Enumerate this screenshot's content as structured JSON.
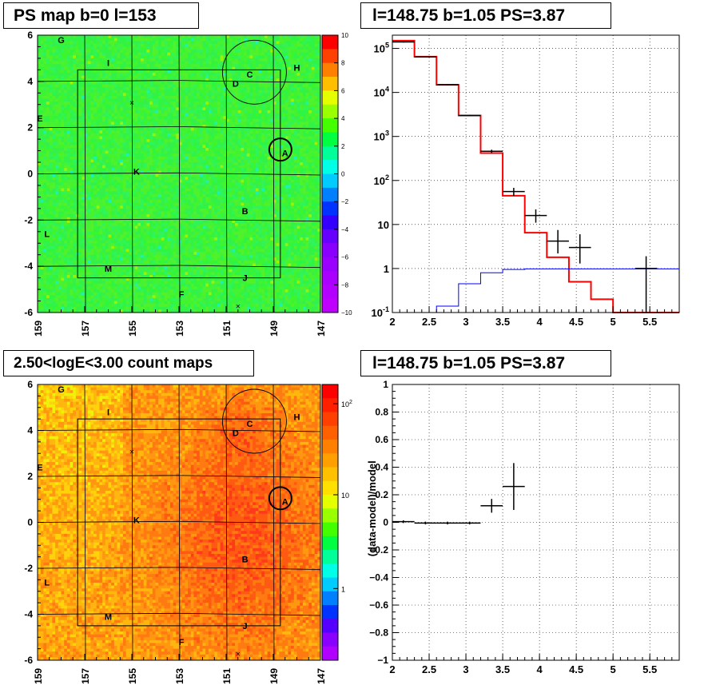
{
  "panels": {
    "tl_title": "PS map b=0 l=153",
    "tr_title": "l=148.75 b=1.05 PS=3.87",
    "bl_title": "2.50<logE<3.00 count maps",
    "br_title": "l=148.75 b=1.05 PS=3.87"
  },
  "chart_data": [
    {
      "type": "heatmap",
      "title": "PS map b=0 l=153",
      "x_range": [
        159,
        147
      ],
      "y_range": [
        -6,
        6
      ],
      "x_ticks": [
        "159",
        "157",
        "155",
        "153",
        "151",
        "149",
        "147"
      ],
      "y_ticks": [
        "6",
        "4",
        "2",
        "0",
        "-2",
        "-4",
        "-6"
      ],
      "colorbar": {
        "range": [
          -10,
          10
        ],
        "ticks": [
          "10",
          "8",
          "6",
          "4",
          "2",
          "0",
          "−2",
          "−4",
          "−6",
          "−8",
          "−10"
        ]
      },
      "source_labels": [
        {
          "name": "G",
          "l": 158.0,
          "b": 5.8
        },
        {
          "name": "I",
          "l": 156.0,
          "b": 4.8
        },
        {
          "name": "C",
          "l": 150.0,
          "b": 4.3
        },
        {
          "name": "D",
          "l": 150.6,
          "b": 3.9
        },
        {
          "name": "H",
          "l": 148.0,
          "b": 4.6
        },
        {
          "name": "E",
          "l": 158.9,
          "b": 2.4
        },
        {
          "name": "A",
          "l": 148.5,
          "b": 0.9
        },
        {
          "name": "K",
          "l": 154.8,
          "b": 0.1
        },
        {
          "name": "B",
          "l": 150.2,
          "b": -1.6
        },
        {
          "name": "L",
          "l": 158.6,
          "b": -2.6
        },
        {
          "name": "M",
          "l": 156.0,
          "b": -4.1
        },
        {
          "name": "J",
          "l": 150.2,
          "b": -4.5
        },
        {
          "name": "F",
          "l": 152.9,
          "b": -5.2
        }
      ]
    },
    {
      "type": "line",
      "title": "l=148.75 b=1.05 PS=3.87",
      "x_range": [
        2,
        5.9
      ],
      "y_range": [
        0.1,
        200000
      ],
      "y_scale": "log",
      "x_ticks": [
        "2",
        "2.5",
        "3",
        "3.5",
        "4",
        "4.5",
        "5",
        "5.5"
      ],
      "y_ticks": [
        "10^5",
        "10^4",
        "10^3",
        "10^2",
        "10",
        "1",
        "10^-1"
      ],
      "series": [
        {
          "color": "#ff0000",
          "edges": [
            2,
            2.3,
            2.6,
            2.9,
            3.2,
            3.5,
            3.8,
            4.1,
            4.4,
            4.7,
            5.0,
            5.9
          ],
          "values": [
            150000,
            65000,
            15000,
            3000,
            420,
            45,
            6.5,
            1.8,
            0.5,
            0.2,
            0.1
          ]
        },
        {
          "color": "#0000ff",
          "edges": [
            2,
            2.3,
            2.6,
            2.9,
            3.2,
            3.5,
            3.8,
            4.1,
            4.4,
            4.7,
            5.0,
            5.9
          ],
          "values": [
            0.05,
            0.09,
            0.14,
            0.45,
            0.8,
            0.95,
            0.98,
            0.98,
            0.98,
            0.98,
            0.98
          ]
        },
        {
          "color": "#000000",
          "points": [
            {
              "x": 2.15,
              "y": 140000,
              "xerr": 0.15,
              "ylo": 136000,
              "yhi": 144000
            },
            {
              "x": 2.45,
              "y": 64000,
              "xerr": 0.15,
              "ylo": 62000,
              "yhi": 66000
            },
            {
              "x": 2.75,
              "y": 15000,
              "xerr": 0.15,
              "ylo": 14500,
              "yhi": 15500
            },
            {
              "x": 3.05,
              "y": 3000,
              "xerr": 0.15,
              "ylo": 2900,
              "yhi": 3100
            },
            {
              "x": 3.35,
              "y": 460,
              "xerr": 0.15,
              "ylo": 420,
              "yhi": 500
            },
            {
              "x": 3.65,
              "y": 56,
              "xerr": 0.15,
              "ylo": 45,
              "yhi": 68
            },
            {
              "x": 3.95,
              "y": 16,
              "xerr": 0.15,
              "ylo": 11,
              "yhi": 22
            },
            {
              "x": 4.25,
              "y": 4.2,
              "xerr": 0.15,
              "ylo": 2.2,
              "yhi": 7.5
            },
            {
              "x": 4.55,
              "y": 3.0,
              "xerr": 0.15,
              "ylo": 1.3,
              "yhi": 6.0
            },
            {
              "x": 5.45,
              "y": 1.0,
              "xerr": 0.15,
              "ylo": 0.1,
              "yhi": 1.9
            }
          ]
        }
      ]
    },
    {
      "type": "heatmap",
      "title": "2.50<logE<3.00 count maps",
      "x_range": [
        159,
        147
      ],
      "y_range": [
        -6,
        6
      ],
      "x_ticks": [
        "159",
        "157",
        "155",
        "153",
        "151",
        "149",
        "147"
      ],
      "y_ticks": [
        "6",
        "4",
        "2",
        "0",
        "-2",
        "-4",
        "-6"
      ],
      "colorbar": {
        "scale": "log",
        "ticks": [
          "10^2",
          "10",
          "1"
        ]
      },
      "source_labels": [
        {
          "name": "G",
          "l": 158.0,
          "b": 5.8
        },
        {
          "name": "I",
          "l": 156.0,
          "b": 4.8
        },
        {
          "name": "C",
          "l": 150.0,
          "b": 4.3
        },
        {
          "name": "D",
          "l": 150.6,
          "b": 3.9
        },
        {
          "name": "H",
          "l": 148.0,
          "b": 4.6
        },
        {
          "name": "E",
          "l": 158.9,
          "b": 2.4
        },
        {
          "name": "A",
          "l": 148.5,
          "b": 0.9
        },
        {
          "name": "K",
          "l": 154.8,
          "b": 0.1
        },
        {
          "name": "B",
          "l": 150.2,
          "b": -1.6
        },
        {
          "name": "L",
          "l": 158.6,
          "b": -2.6
        },
        {
          "name": "M",
          "l": 156.0,
          "b": -4.1
        },
        {
          "name": "J",
          "l": 150.2,
          "b": -4.5
        },
        {
          "name": "F",
          "l": 152.9,
          "b": -5.2
        }
      ]
    },
    {
      "type": "scatter",
      "title": "l=148.75 b=1.05 PS=3.87",
      "ylabel": "(data-model)/model",
      "x_range": [
        2,
        5.9
      ],
      "y_range": [
        -1,
        1
      ],
      "x_ticks": [
        "2",
        "2.5",
        "3",
        "3.5",
        "4",
        "4.5",
        "5",
        "5.5"
      ],
      "y_ticks": [
        "1",
        "0.8",
        "0.6",
        "0.4",
        "0.2",
        "0",
        "−0.2",
        "−0.4",
        "−0.6",
        "−0.8",
        "−1"
      ],
      "points": [
        {
          "x": 2.15,
          "y": 0.005,
          "xerr": 0.15,
          "yerr": 0.01
        },
        {
          "x": 2.45,
          "y": -0.005,
          "xerr": 0.15,
          "yerr": 0.01
        },
        {
          "x": 2.75,
          "y": -0.005,
          "xerr": 0.15,
          "yerr": 0.01
        },
        {
          "x": 3.05,
          "y": -0.005,
          "xerr": 0.15,
          "yerr": 0.01
        },
        {
          "x": 3.35,
          "y": 0.12,
          "xerr": 0.15,
          "yerr": 0.05
        },
        {
          "x": 3.65,
          "y": 0.26,
          "xerr": 0.15,
          "yerr": 0.17
        }
      ]
    }
  ]
}
